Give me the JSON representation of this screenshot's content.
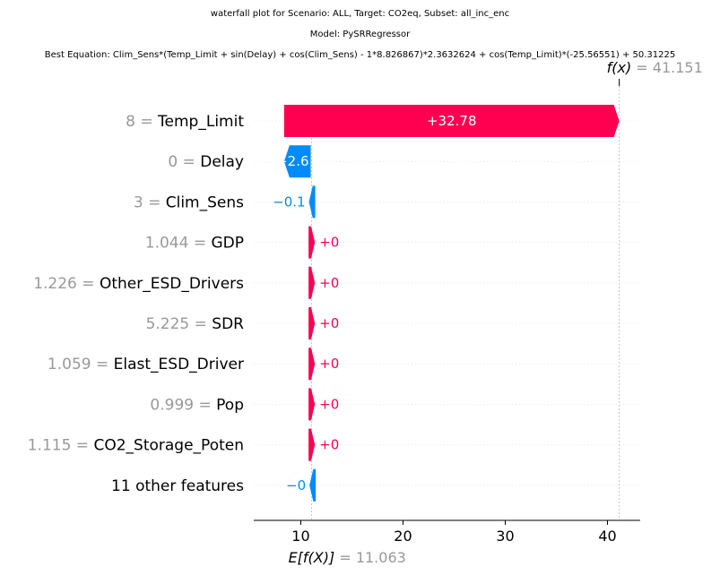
{
  "header": {
    "title_line1": "waterfall plot for Scenario: ALL, Target: CO2eq, Subset: all_inc_enc",
    "title_line2": "Model: PySRRegressor",
    "title_line3": "Best Equation: Clim_Sens*(Temp_Limit + sin(Delay) + cos(Clim_Sens) - 1*8.826867)*2.3632624 + cos(Temp_Limit)*(-25.56551) + 50.31225"
  },
  "colors": {
    "positive": "#ff0051",
    "negative": "#008bfb",
    "feature_value": "#999999",
    "grid": "#dddddd"
  },
  "chart_data": {
    "type": "waterfall",
    "base_value": 11.063,
    "output_value": 41.151,
    "base_label": "E[f(X)]",
    "base_value_text": "= 11.063",
    "output_label": "f(x)",
    "output_value_text": "= 41.151",
    "xlim": [
      5.4,
      43.2
    ],
    "x_ticks": [
      10,
      20,
      30,
      40
    ],
    "rows": [
      {
        "value_label": "8",
        "feature": "Temp_Limit",
        "contribution": 32.78,
        "text": "+32.78"
      },
      {
        "value_label": "0",
        "feature": "Delay",
        "contribution": -2.6,
        "text": "−2.6"
      },
      {
        "value_label": "3",
        "feature": "Clim_Sens",
        "contribution": -0.1,
        "text": "−0.1"
      },
      {
        "value_label": "1.044",
        "feature": "GDP",
        "contribution": 0.0,
        "text": "+0"
      },
      {
        "value_label": "1.226",
        "feature": "Other_ESD_Drivers",
        "contribution": 0.0,
        "text": "+0"
      },
      {
        "value_label": "5.225",
        "feature": "SDR",
        "contribution": 0.0,
        "text": "+0"
      },
      {
        "value_label": "1.059",
        "feature": "Elast_ESD_Driver",
        "contribution": 0.0,
        "text": "+0"
      },
      {
        "value_label": "0.999",
        "feature": "Pop",
        "contribution": 0.0,
        "text": "+0"
      },
      {
        "value_label": "1.115",
        "feature": "CO2_Storage_Poten",
        "contribution": 0.0,
        "text": "+0"
      },
      {
        "value_label": "",
        "feature": "11 other features",
        "contribution": -0.0,
        "text": "−0"
      }
    ]
  }
}
